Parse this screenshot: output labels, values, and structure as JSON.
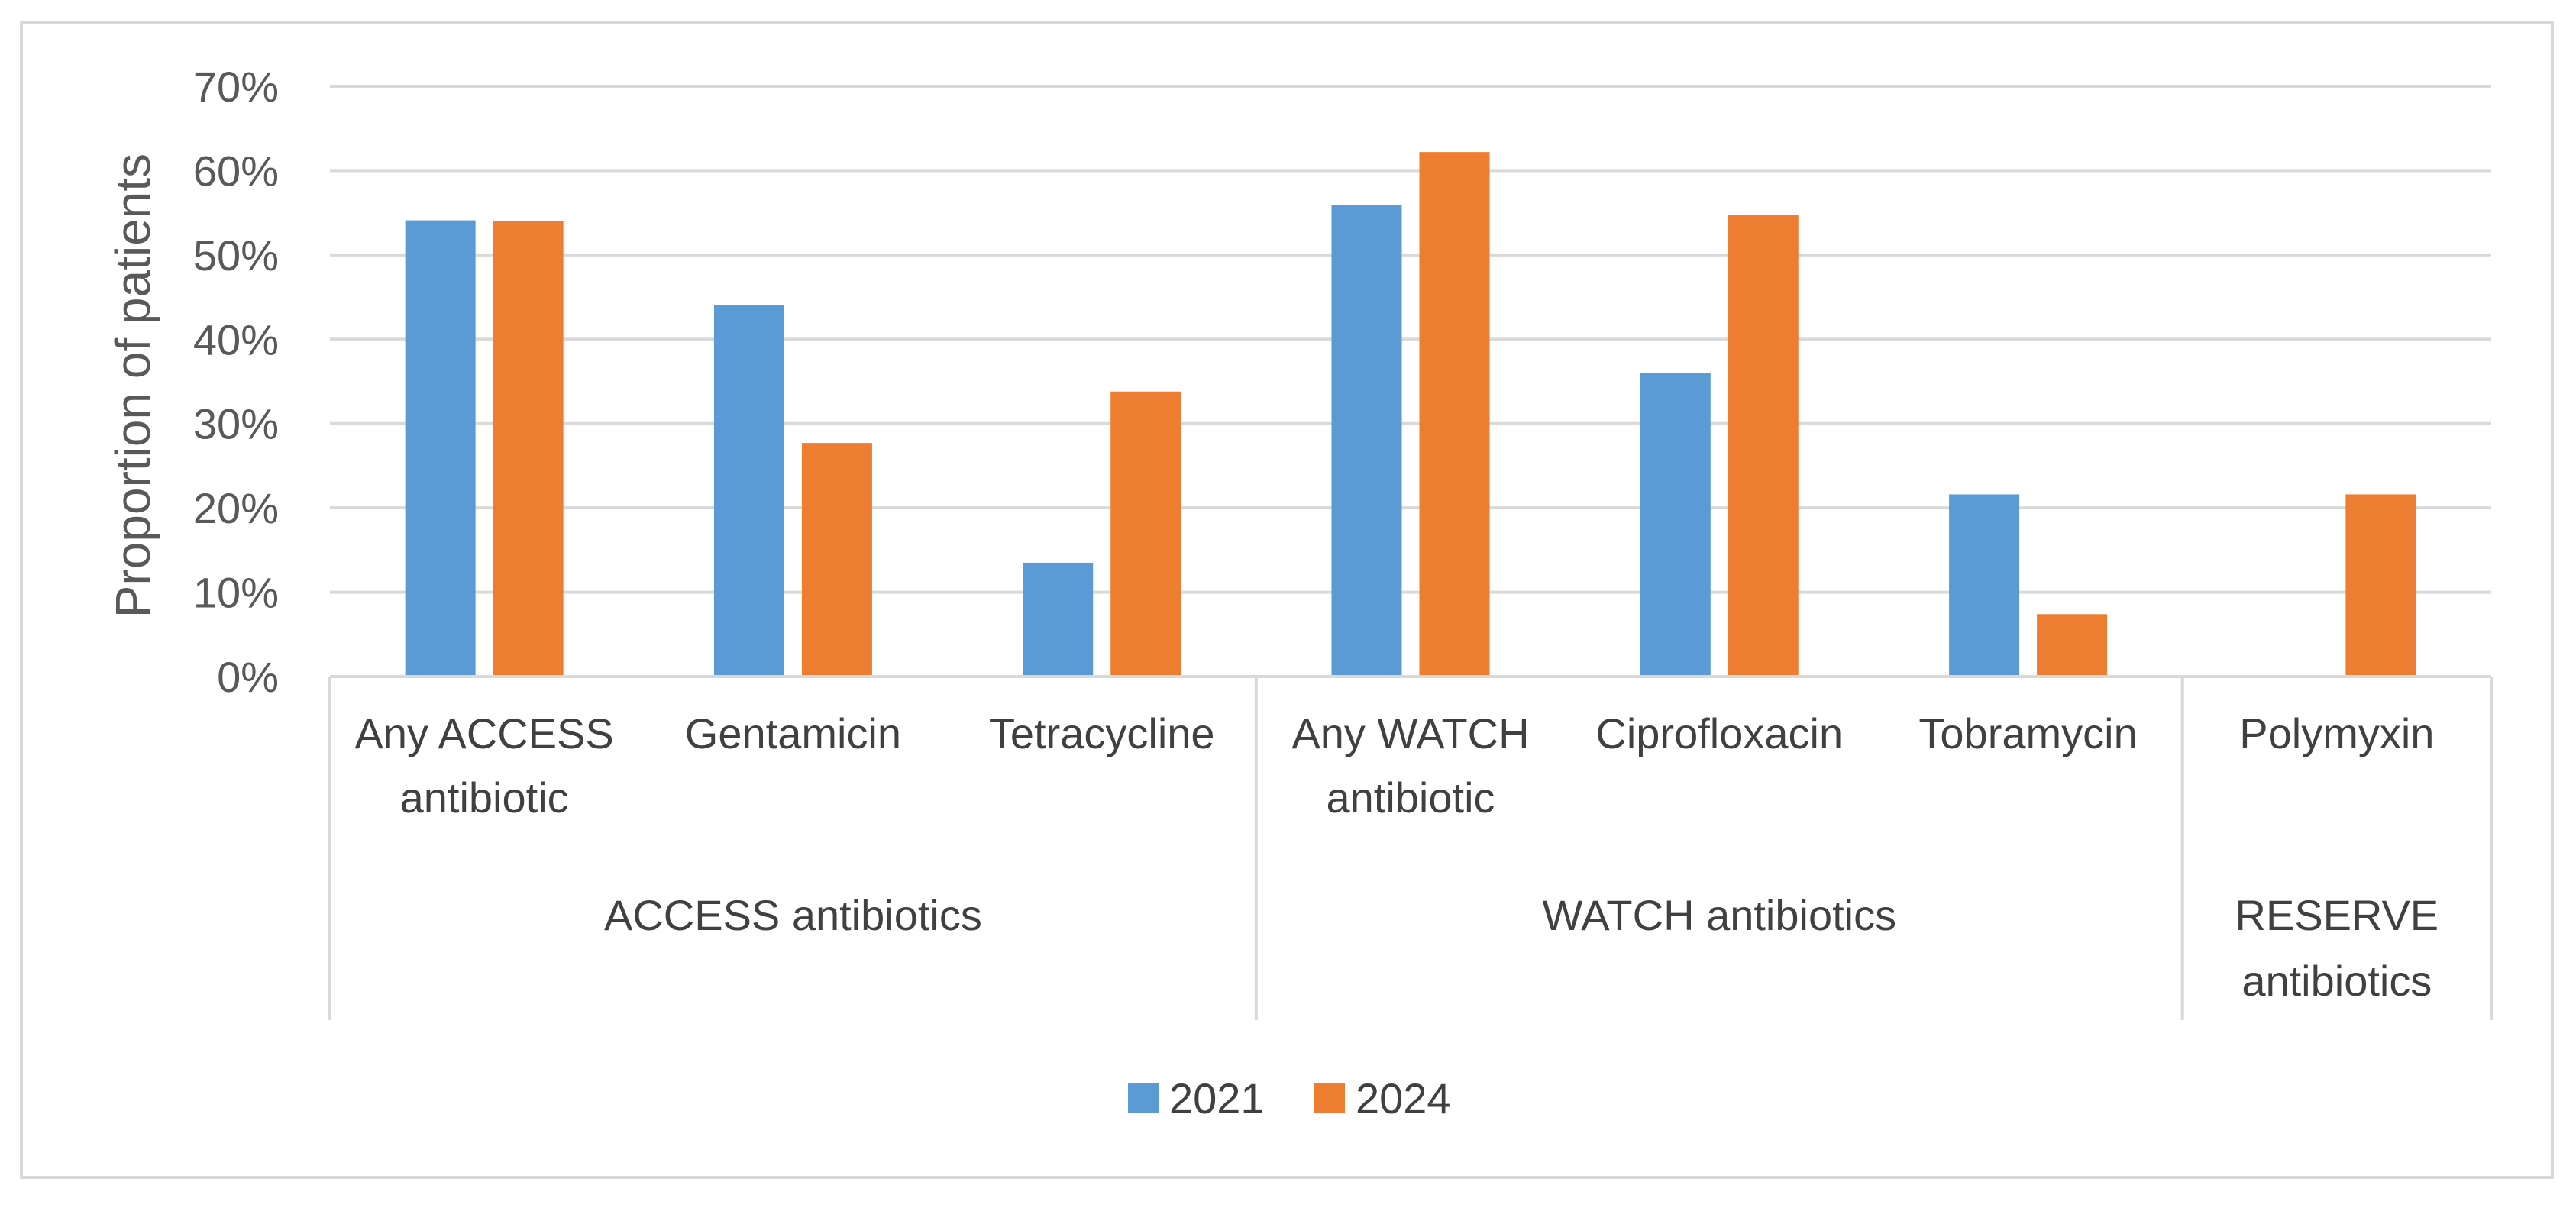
{
  "chart_data": {
    "type": "bar",
    "title": "",
    "ylabel": "Proportion of patients",
    "xlabel": "",
    "ylim": [
      0,
      0.7
    ],
    "yticks": [
      "0%",
      "10%",
      "20%",
      "30%",
      "40%",
      "50%",
      "60%",
      "70%"
    ],
    "grid": true,
    "legend_position": "bottom",
    "categories": [
      "Any ACCESS antibiotic",
      "Gentamicin",
      "Tetracycline",
      "Any WATCH antibiotic",
      "Ciprofloxacin",
      "Tobramycin",
      "Polymyxin"
    ],
    "category_lines": [
      [
        "Any ACCESS",
        "antibiotic"
      ],
      [
        "Gentamicin"
      ],
      [
        "Tetracycline"
      ],
      [
        "Any WATCH",
        "antibiotic"
      ],
      [
        "Ciprofloxacin"
      ],
      [
        "Tobramycin"
      ],
      [
        "Polymyxin"
      ]
    ],
    "groups": [
      {
        "lines": [
          "ACCESS antibiotics"
        ],
        "start": 0,
        "end": 2
      },
      {
        "lines": [
          "WATCH antibiotics"
        ],
        "start": 3,
        "end": 5
      },
      {
        "lines": [
          "RESERVE",
          "antibiotics"
        ],
        "start": 6,
        "end": 6
      }
    ],
    "series": [
      {
        "name": "2021",
        "color": "#5b9bd5",
        "values": [
          0.541,
          0.441,
          0.135,
          0.559,
          0.36,
          0.216,
          0.0
        ]
      },
      {
        "name": "2024",
        "color": "#ed7d31",
        "values": [
          0.54,
          0.277,
          0.338,
          0.622,
          0.547,
          0.074,
          0.216
        ]
      }
    ]
  }
}
